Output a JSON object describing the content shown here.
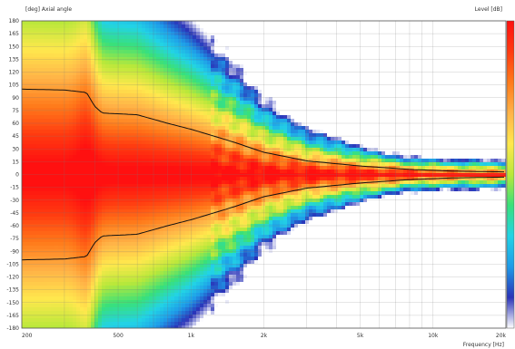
{
  "chart_data": {
    "type": "heatmap",
    "title": "",
    "ylabel": "[deg]  Axial angle",
    "xlabel": "Frequency [Hz]",
    "colorbar_label": "Level  [dB]",
    "x_scale": "log",
    "xlim": [
      200,
      20000
    ],
    "ylim": [
      -180,
      180
    ],
    "x_ticks": [
      {
        "value": 200,
        "label": "200"
      },
      {
        "value": 500,
        "label": "500"
      },
      {
        "value": 1000,
        "label": "1k"
      },
      {
        "value": 2000,
        "label": "2k"
      },
      {
        "value": 5000,
        "label": "5k"
      },
      {
        "value": 10000,
        "label": "10k"
      },
      {
        "value": 20000,
        "label": "20k"
      }
    ],
    "y_ticks": [
      180,
      165,
      150,
      135,
      120,
      105,
      90,
      75,
      60,
      45,
      30,
      15,
      0,
      -15,
      -30,
      -45,
      -60,
      -75,
      -90,
      -105,
      -120,
      -135,
      -150,
      -165,
      -180
    ],
    "grid": true,
    "colorscale": [
      "#ffffff",
      "#2a33b8",
      "#1f9be8",
      "#22d3e6",
      "#39e07a",
      "#b9e83a",
      "#ffe84d",
      "#ffb347",
      "#ff7a1a",
      "#ff3a10",
      "#ff1010"
    ],
    "contour": {
      "level": "-6 dB",
      "points": [
        {
          "f": 200,
          "angle": 100
        },
        {
          "f": 300,
          "angle": 99
        },
        {
          "f": 370,
          "angle": 96
        },
        {
          "f": 400,
          "angle": 80
        },
        {
          "f": 430,
          "angle": 72
        },
        {
          "f": 600,
          "angle": 70
        },
        {
          "f": 800,
          "angle": 60
        },
        {
          "f": 1000,
          "angle": 53
        },
        {
          "f": 1500,
          "angle": 38
        },
        {
          "f": 2000,
          "angle": 26
        },
        {
          "f": 3000,
          "angle": 16
        },
        {
          "f": 5000,
          "angle": 10
        },
        {
          "f": 8000,
          "angle": 6
        },
        {
          "f": 12000,
          "angle": 4
        },
        {
          "f": 20000,
          "angle": 3
        }
      ]
    }
  }
}
